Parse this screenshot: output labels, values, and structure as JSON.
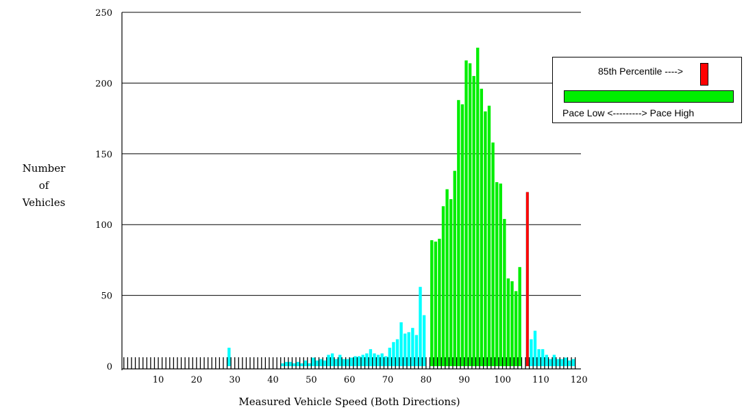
{
  "chart_data": {
    "type": "bar",
    "xlabel": "Measured Vehicle Speed (Both Directions)",
    "ylabel": [
      "Number",
      "of",
      "Vehicles"
    ],
    "xlim": [
      0,
      120
    ],
    "ylim": [
      0,
      250
    ],
    "xticks": [
      10,
      20,
      30,
      40,
      50,
      60,
      70,
      80,
      90,
      100,
      110,
      120
    ],
    "yticks": [
      0,
      50,
      100,
      150,
      200,
      250
    ],
    "grid": "horizontal",
    "legend_placement": "top-right",
    "colors": {
      "normal": "#00ffff",
      "pace": "#00ee00",
      "percentile": "#ff0000"
    },
    "pace_range": [
      81,
      105
    ],
    "percentile_85": {
      "x": 106,
      "value": 123
    },
    "x": [
      1,
      2,
      3,
      4,
      5,
      6,
      7,
      8,
      9,
      10,
      11,
      12,
      13,
      14,
      15,
      16,
      17,
      18,
      19,
      20,
      21,
      22,
      23,
      24,
      25,
      26,
      27,
      28,
      29,
      30,
      31,
      32,
      33,
      34,
      35,
      36,
      37,
      38,
      39,
      40,
      41,
      42,
      43,
      44,
      45,
      46,
      47,
      48,
      49,
      50,
      51,
      52,
      53,
      54,
      55,
      56,
      57,
      58,
      59,
      60,
      61,
      62,
      63,
      64,
      65,
      66,
      67,
      68,
      69,
      70,
      71,
      72,
      73,
      74,
      75,
      76,
      77,
      78,
      79,
      80,
      81,
      82,
      83,
      84,
      85,
      86,
      87,
      88,
      89,
      90,
      91,
      92,
      93,
      94,
      95,
      96,
      97,
      98,
      99,
      100,
      101,
      102,
      103,
      104,
      105,
      106,
      107,
      108,
      109,
      110,
      111,
      112,
      113,
      114,
      115,
      116,
      117,
      118,
      119
    ],
    "values": [
      0,
      0,
      0,
      0,
      0,
      0,
      0,
      0,
      0,
      0,
      0,
      0,
      0,
      0,
      0,
      0,
      0,
      0,
      0,
      0,
      0,
      0,
      0,
      0,
      0,
      0,
      0,
      13,
      0,
      0,
      0,
      0,
      0,
      0,
      0,
      0,
      0,
      0,
      0,
      0,
      0,
      2,
      3,
      3,
      2,
      3,
      2,
      4,
      2,
      6,
      4,
      5,
      4,
      8,
      9,
      5,
      8,
      5,
      5,
      6,
      7,
      7,
      8,
      9,
      12,
      9,
      8,
      9,
      7,
      13,
      17,
      19,
      31,
      23,
      24,
      27,
      22,
      56,
      36,
      0,
      89,
      88,
      90,
      113,
      125,
      118,
      138,
      188,
      185,
      216,
      214,
      205,
      225,
      196,
      180,
      184,
      158,
      130,
      129,
      104,
      62,
      60,
      53,
      70,
      0,
      123,
      19,
      25,
      12,
      12,
      8,
      5,
      8,
      5,
      5,
      6,
      4,
      5,
      0
    ]
  },
  "legend": {
    "percentile_label": "85th Percentile ---->",
    "pace_label": "Pace Low <---------> Pace High"
  }
}
